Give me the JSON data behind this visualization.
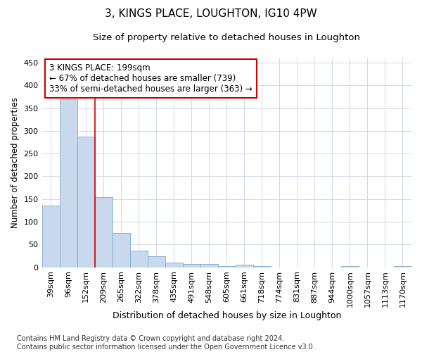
{
  "title": "3, KINGS PLACE, LOUGHTON, IG10 4PW",
  "subtitle": "Size of property relative to detached houses in Loughton",
  "xlabel": "Distribution of detached houses by size in Loughton",
  "ylabel": "Number of detached properties",
  "categories": [
    "39sqm",
    "96sqm",
    "152sqm",
    "209sqm",
    "265sqm",
    "322sqm",
    "378sqm",
    "435sqm",
    "491sqm",
    "548sqm",
    "605sqm",
    "661sqm",
    "718sqm",
    "774sqm",
    "831sqm",
    "887sqm",
    "944sqm",
    "1000sqm",
    "1057sqm",
    "1113sqm",
    "1170sqm"
  ],
  "values": [
    135,
    370,
    288,
    155,
    75,
    37,
    25,
    10,
    8,
    7,
    3,
    5,
    3,
    0,
    0,
    0,
    0,
    3,
    0,
    0,
    3
  ],
  "bar_color": "#c8d9ee",
  "bar_edge_color": "#7aaad0",
  "property_line_index": 2.5,
  "property_line_color": "#cc0000",
  "annotation_text": "3 KINGS PLACE: 199sqm\n← 67% of detached houses are smaller (739)\n33% of semi-detached houses are larger (363) →",
  "annotation_box_color": "#ffffff",
  "annotation_box_edge_color": "#cc0000",
  "ylim": [
    0,
    460
  ],
  "yticks": [
    0,
    50,
    100,
    150,
    200,
    250,
    300,
    350,
    400,
    450
  ],
  "grid_color": "#d0d8e8",
  "background_color": "#ffffff",
  "footnote": "Contains HM Land Registry data © Crown copyright and database right 2024.\nContains public sector information licensed under the Open Government Licence v3.0.",
  "title_fontsize": 11,
  "subtitle_fontsize": 9.5,
  "xlabel_fontsize": 9,
  "ylabel_fontsize": 8.5,
  "tick_fontsize": 8,
  "annotation_fontsize": 8.5,
  "footnote_fontsize": 7
}
